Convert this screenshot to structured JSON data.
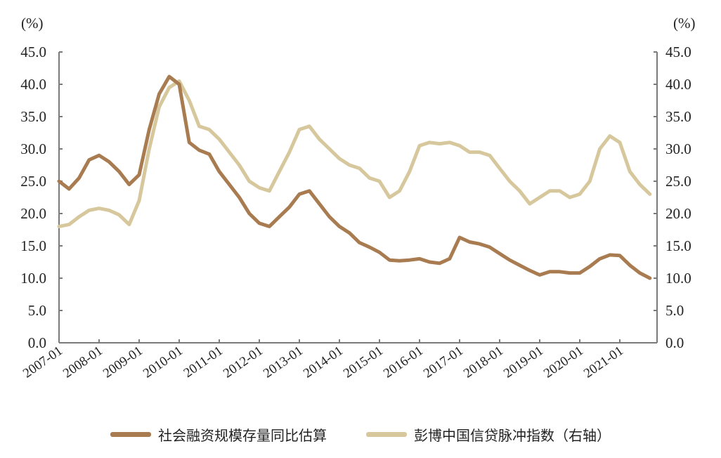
{
  "left_axis": {
    "unit": "(%)",
    "ticks": [
      "45.0",
      "40.0",
      "35.0",
      "30.0",
      "25.0",
      "20.0",
      "15.0",
      "10.0",
      "5.0",
      "0.0"
    ]
  },
  "right_axis": {
    "unit": "(%)",
    "ticks": [
      "45.0",
      "40.0",
      "35.0",
      "30.0",
      "25.0",
      "20.0",
      "15.0",
      "10.0",
      "5.0",
      "0.0"
    ]
  },
  "x_axis": {
    "ticks": [
      "2007-01",
      "2008-01",
      "2009-01",
      "2010-01",
      "2011-01",
      "2012-01",
      "2013-01",
      "2014-01",
      "2015-01",
      "2016-01",
      "2017-01",
      "2018-01",
      "2019-01",
      "2020-01",
      "2021-01"
    ]
  },
  "legend": {
    "series1_label": "社会融资规模存量同比估算",
    "series2_label": "彭博中国信贷脉冲指数（右轴）"
  },
  "colors": {
    "series1": "#a87c50",
    "series2": "#d6c79d",
    "axis": "#7a7a7a"
  },
  "chart_data": {
    "type": "line",
    "title": "",
    "xlabel": "",
    "ylabel": "(%)",
    "y2label": "(%)",
    "ylim": [
      0,
      45
    ],
    "y2lim": [
      0,
      45
    ],
    "grid": false,
    "legend_position": "bottom",
    "x_tick_labels": [
      "2007-01",
      "2008-01",
      "2009-01",
      "2010-01",
      "2011-01",
      "2012-01",
      "2013-01",
      "2014-01",
      "2015-01",
      "2016-01",
      "2017-01",
      "2018-01",
      "2019-01",
      "2020-01",
      "2021-01"
    ],
    "x": [
      2007.0,
      2007.25,
      2007.5,
      2007.75,
      2008.0,
      2008.25,
      2008.5,
      2008.75,
      2009.0,
      2009.25,
      2009.5,
      2009.75,
      2010.0,
      2010.25,
      2010.5,
      2010.75,
      2011.0,
      2011.25,
      2011.5,
      2011.75,
      2012.0,
      2012.25,
      2012.5,
      2012.75,
      2013.0,
      2013.25,
      2013.5,
      2013.75,
      2014.0,
      2014.25,
      2014.5,
      2014.75,
      2015.0,
      2015.25,
      2015.5,
      2015.75,
      2016.0,
      2016.25,
      2016.5,
      2016.75,
      2017.0,
      2017.25,
      2017.5,
      2017.75,
      2018.0,
      2018.25,
      2018.5,
      2018.75,
      2019.0,
      2019.25,
      2019.5,
      2019.75,
      2020.0,
      2020.25,
      2020.5,
      2020.75,
      2021.0,
      2021.25,
      2021.5,
      2021.75
    ],
    "series": [
      {
        "name": "社会融资规模存量同比估算",
        "axis": "left",
        "values": [
          25.0,
          23.8,
          25.5,
          28.3,
          29.0,
          28.0,
          26.5,
          24.5,
          26.0,
          33.0,
          38.5,
          41.2,
          40.0,
          31.0,
          29.8,
          29.2,
          26.5,
          24.5,
          22.5,
          20.0,
          18.5,
          18.0,
          19.5,
          21.0,
          23.0,
          23.5,
          21.5,
          19.5,
          18.0,
          17.0,
          15.5,
          14.8,
          14.0,
          12.8,
          12.7,
          12.8,
          13.0,
          12.5,
          12.3,
          13.0,
          16.3,
          15.6,
          15.3,
          14.8,
          13.8,
          12.8,
          12.0,
          11.2,
          10.5,
          11.0,
          11.0,
          10.8,
          10.8,
          11.8,
          13.0,
          13.6,
          13.5,
          12.0,
          10.8,
          10.0
        ]
      },
      {
        "name": "彭博中国信贷脉冲指数（右轴）",
        "axis": "right",
        "values": [
          18.0,
          18.3,
          19.5,
          20.5,
          20.8,
          20.5,
          19.8,
          18.3,
          22.0,
          30.0,
          36.5,
          39.5,
          40.5,
          37.5,
          33.5,
          33.0,
          31.5,
          29.5,
          27.5,
          25.0,
          24.0,
          23.5,
          26.5,
          29.5,
          33.0,
          33.5,
          31.5,
          30.0,
          28.5,
          27.5,
          27.0,
          25.5,
          25.0,
          22.5,
          23.5,
          26.5,
          30.5,
          31.0,
          30.8,
          31.0,
          30.5,
          29.5,
          29.5,
          29.0,
          27.0,
          25.0,
          23.5,
          21.5,
          22.5,
          23.5,
          23.5,
          22.5,
          23.0,
          25.0,
          30.0,
          32.0,
          31.0,
          26.5,
          24.5,
          23.0
        ]
      }
    ]
  }
}
